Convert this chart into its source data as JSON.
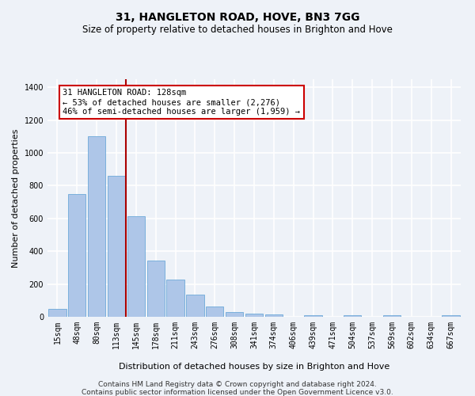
{
  "title": "31, HANGLETON ROAD, HOVE, BN3 7GG",
  "subtitle": "Size of property relative to detached houses in Brighton and Hove",
  "xlabel": "Distribution of detached houses by size in Brighton and Hove",
  "ylabel": "Number of detached properties",
  "footer_line1": "Contains HM Land Registry data © Crown copyright and database right 2024.",
  "footer_line2": "Contains public sector information licensed under the Open Government Licence v3.0.",
  "categories": [
    "15sqm",
    "48sqm",
    "80sqm",
    "113sqm",
    "145sqm",
    "178sqm",
    "211sqm",
    "243sqm",
    "276sqm",
    "308sqm",
    "341sqm",
    "374sqm",
    "406sqm",
    "439sqm",
    "471sqm",
    "504sqm",
    "537sqm",
    "569sqm",
    "602sqm",
    "634sqm",
    "667sqm"
  ],
  "bar_values": [
    50,
    750,
    1100,
    860,
    615,
    345,
    225,
    135,
    65,
    30,
    20,
    13,
    0,
    10,
    0,
    10,
    0,
    10,
    0,
    0,
    10
  ],
  "bar_color": "#aec6e8",
  "bar_edge_color": "#5a9fd4",
  "vline_pos": 3.5,
  "vline_color": "#aa0000",
  "annotation_line1": "31 HANGLETON ROAD: 128sqm",
  "annotation_line2": "← 53% of detached houses are smaller (2,276)",
  "annotation_line3": "46% of semi-detached houses are larger (1,959) →",
  "ylim": [
    0,
    1450
  ],
  "background_color": "#eef2f8",
  "grid_color": "#ffffff",
  "title_fontsize": 10,
  "subtitle_fontsize": 8.5,
  "axis_label_fontsize": 8,
  "tick_fontsize": 7,
  "footer_fontsize": 6.5,
  "annotation_fontsize": 7.5
}
